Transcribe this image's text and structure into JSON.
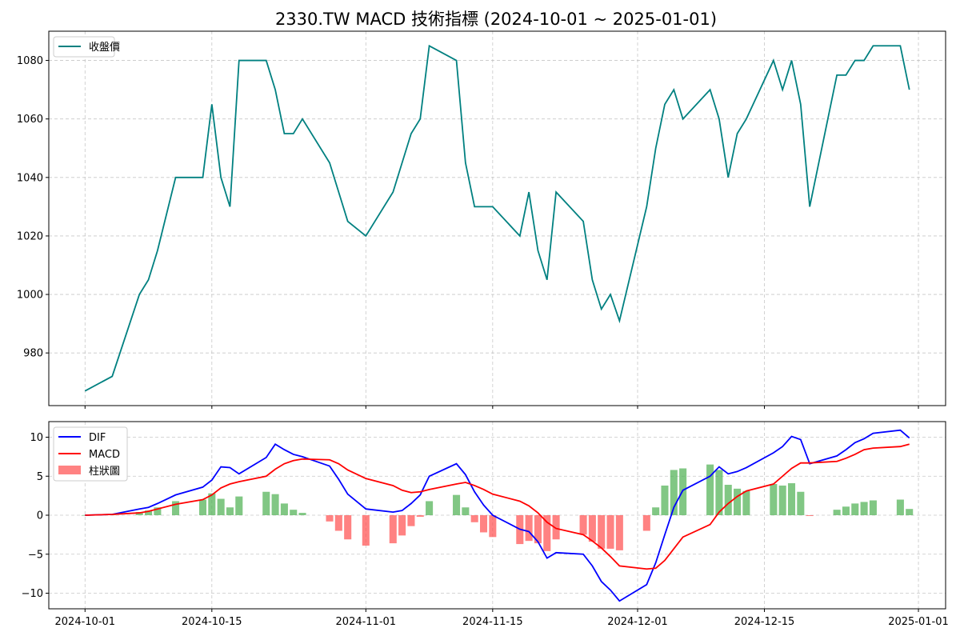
{
  "title": "2330.TW MACD 技術指標 (2024-10-01 ~ 2025-01-01)",
  "colors": {
    "price": "#008080",
    "dif": "#0000ff",
    "macd": "#ff0000",
    "hist_pos": "#4caf50",
    "hist_neg": "#ff4d4d"
  },
  "chart_data": [
    {
      "type": "line",
      "panel": "price",
      "x_type": "date",
      "xlim": [
        "2024-09-27",
        "2025-01-04"
      ],
      "ylim": [
        962,
        1090
      ],
      "yticks": [
        980,
        1000,
        1020,
        1040,
        1060,
        1080
      ],
      "xticks": [
        "2024-10-01",
        "2024-10-15",
        "2024-11-01",
        "2024-11-15",
        "2024-12-01",
        "2024-12-15",
        "2025-01-01"
      ],
      "grid": true,
      "legend_position": "top-left",
      "series": [
        {
          "name": "收盤價",
          "x": [
            "2024-10-01",
            "2024-10-04",
            "2024-10-07",
            "2024-10-08",
            "2024-10-09",
            "2024-10-11",
            "2024-10-14",
            "2024-10-15",
            "2024-10-16",
            "2024-10-17",
            "2024-10-18",
            "2024-10-21",
            "2024-10-22",
            "2024-10-23",
            "2024-10-24",
            "2024-10-25",
            "2024-10-28",
            "2024-10-30",
            "2024-11-01",
            "2024-11-04",
            "2024-11-06",
            "2024-11-07",
            "2024-11-08",
            "2024-11-11",
            "2024-11-12",
            "2024-11-13",
            "2024-11-15",
            "2024-11-18",
            "2024-11-19",
            "2024-11-20",
            "2024-11-21",
            "2024-11-22",
            "2024-11-25",
            "2024-11-26",
            "2024-11-27",
            "2024-11-28",
            "2024-11-29",
            "2024-12-02",
            "2024-12-03",
            "2024-12-04",
            "2024-12-05",
            "2024-12-06",
            "2024-12-09",
            "2024-12-10",
            "2024-12-11",
            "2024-12-12",
            "2024-12-13",
            "2024-12-16",
            "2024-12-17",
            "2024-12-18",
            "2024-12-19",
            "2024-12-20",
            "2024-12-23",
            "2024-12-24",
            "2024-12-25",
            "2024-12-26",
            "2024-12-27",
            "2024-12-30",
            "2024-12-31"
          ],
          "values": [
            967,
            972,
            1000,
            1005,
            1015,
            1040,
            1040,
            1065,
            1040,
            1030,
            1080,
            1080,
            1070,
            1055,
            1055,
            1060,
            1045,
            1025,
            1020,
            1035,
            1055,
            1060,
            1085,
            1080,
            1045,
            1030,
            1030,
            1020,
            1035,
            1015,
            1005,
            1035,
            1025,
            1005,
            995,
            1000,
            991,
            1030,
            1050,
            1065,
            1070,
            1060,
            1070,
            1060,
            1040,
            1055,
            1060,
            1080,
            1070,
            1080,
            1065,
            1030,
            1075,
            1075,
            1080,
            1080,
            1085,
            1085,
            1070
          ]
        }
      ]
    },
    {
      "type": "line",
      "panel": "macd",
      "x_type": "date",
      "xlim": [
        "2024-09-27",
        "2025-01-04"
      ],
      "ylim": [
        -12,
        12
      ],
      "yticks": [
        -10,
        -5,
        0,
        5,
        10
      ],
      "xticks": [
        "2024-10-01",
        "2024-10-15",
        "2024-11-01",
        "2024-11-15",
        "2024-12-01",
        "2024-12-15",
        "2025-01-01"
      ],
      "grid": true,
      "legend_position": "top-left",
      "x": [
        "2024-10-01",
        "2024-10-04",
        "2024-10-07",
        "2024-10-08",
        "2024-10-09",
        "2024-10-11",
        "2024-10-14",
        "2024-10-15",
        "2024-10-16",
        "2024-10-17",
        "2024-10-18",
        "2024-10-21",
        "2024-10-22",
        "2024-10-23",
        "2024-10-24",
        "2024-10-25",
        "2024-10-28",
        "2024-10-29",
        "2024-10-30",
        "2024-11-01",
        "2024-11-04",
        "2024-11-05",
        "2024-11-06",
        "2024-11-07",
        "2024-11-08",
        "2024-11-11",
        "2024-11-12",
        "2024-11-13",
        "2024-11-14",
        "2024-11-15",
        "2024-11-18",
        "2024-11-19",
        "2024-11-20",
        "2024-11-21",
        "2024-11-22",
        "2024-11-25",
        "2024-11-26",
        "2024-11-27",
        "2024-11-28",
        "2024-11-29",
        "2024-12-02",
        "2024-12-03",
        "2024-12-04",
        "2024-12-05",
        "2024-12-06",
        "2024-12-09",
        "2024-12-10",
        "2024-12-11",
        "2024-12-12",
        "2024-12-13",
        "2024-12-16",
        "2024-12-17",
        "2024-12-18",
        "2024-12-19",
        "2024-12-20",
        "2024-12-23",
        "2024-12-24",
        "2024-12-25",
        "2024-12-26",
        "2024-12-27",
        "2024-12-30",
        "2024-12-31"
      ],
      "series": [
        {
          "name": "DIF",
          "values": [
            0.0,
            0.1,
            0.8,
            1.0,
            1.5,
            2.6,
            3.6,
            4.5,
            6.2,
            6.1,
            5.3,
            7.4,
            9.1,
            8.4,
            7.8,
            7.5,
            6.3,
            4.6,
            2.7,
            0.8,
            0.4,
            0.6,
            1.5,
            2.6,
            5.0,
            6.6,
            5.2,
            3.0,
            1.3,
            0.0,
            -1.8,
            -2.1,
            -3.4,
            -5.5,
            -4.8,
            -5.0,
            -6.5,
            -8.5,
            -9.6,
            -11.0,
            -8.9,
            -6.1,
            -2.5,
            1.0,
            3.2,
            5.0,
            6.2,
            5.3,
            5.6,
            6.1,
            8.0,
            8.8,
            10.1,
            9.7,
            6.6,
            7.6,
            8.4,
            9.3,
            9.8,
            10.5,
            10.9,
            9.9
          ]
        },
        {
          "name": "MACD",
          "values": [
            0.0,
            0.1,
            0.3,
            0.5,
            0.8,
            1.4,
            2.0,
            2.6,
            3.5,
            4.0,
            4.3,
            5.0,
            5.9,
            6.6,
            7.0,
            7.2,
            7.1,
            6.6,
            5.8,
            4.7,
            3.8,
            3.2,
            2.9,
            3.0,
            3.3,
            4.0,
            4.2,
            3.8,
            3.3,
            2.7,
            1.8,
            1.2,
            0.3,
            -0.9,
            -1.7,
            -2.5,
            -3.3,
            -4.2,
            -5.3,
            -6.5,
            -6.9,
            -6.8,
            -5.8,
            -4.3,
            -2.8,
            -1.2,
            0.4,
            1.5,
            2.4,
            3.1,
            4.0,
            5.0,
            6.0,
            6.7,
            6.7,
            6.9,
            7.3,
            7.8,
            8.4,
            8.6,
            8.8,
            9.1
          ]
        },
        {
          "name": "柱狀圖",
          "kind": "bar",
          "values": [
            0.0,
            0.1,
            0.4,
            0.6,
            1.0,
            1.8,
            2.0,
            2.8,
            2.1,
            1.0,
            2.4,
            3.0,
            2.7,
            1.5,
            0.7,
            0.3,
            -0.8,
            -2.0,
            -3.1,
            -3.9,
            -3.6,
            -2.6,
            -1.4,
            -0.2,
            1.8,
            2.6,
            1.0,
            -0.9,
            -2.2,
            -2.8,
            -3.7,
            -3.3,
            -3.6,
            -4.6,
            -3.1,
            -2.5,
            -3.4,
            -4.3,
            -4.3,
            -4.5,
            -2.0,
            1.0,
            3.8,
            5.8,
            6.0,
            6.5,
            5.8,
            3.9,
            3.4,
            3.1,
            4.0,
            3.8,
            4.1,
            3.0,
            -0.1,
            0.7,
            1.1,
            1.5,
            1.7,
            1.9,
            2.0,
            0.8
          ]
        }
      ]
    }
  ]
}
